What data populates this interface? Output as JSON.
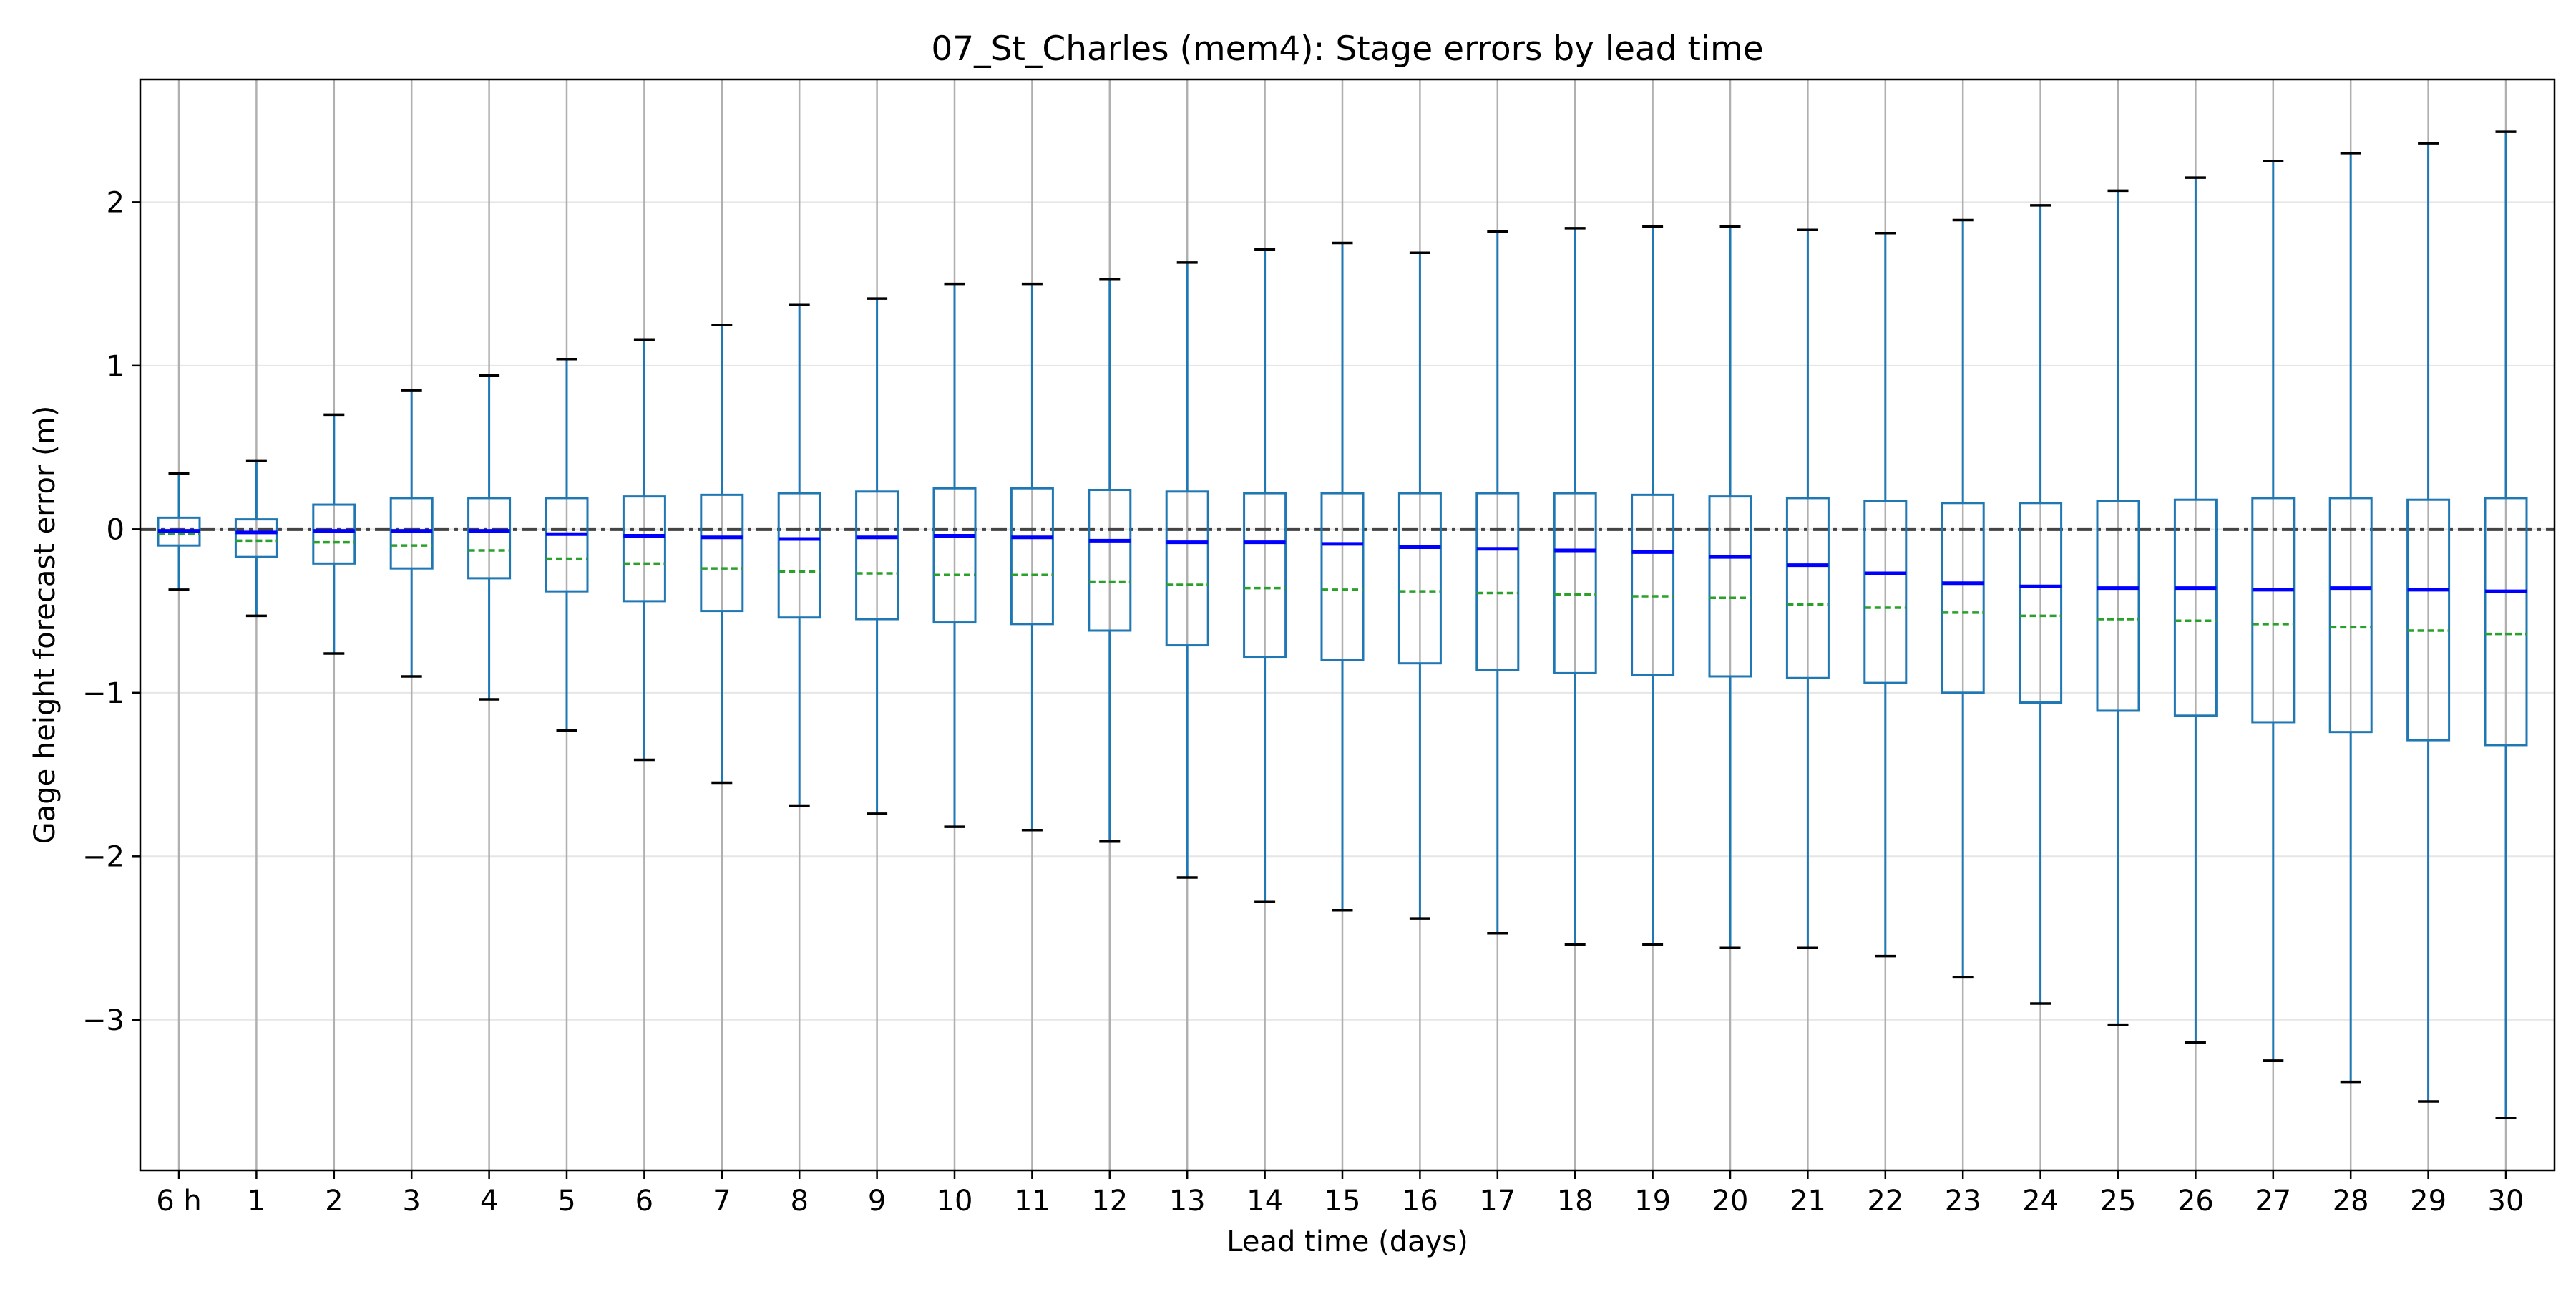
{
  "chart_data": {
    "type": "box",
    "title": "07_St_Charles (mem4): Stage errors by lead time",
    "xlabel": "Lead time (days)",
    "ylabel": "Gage height forecast error (m)",
    "ylim": [
      -3.92,
      2.75
    ],
    "yticks": [
      2,
      1,
      0,
      -1,
      -2,
      -3
    ],
    "ytick_labels": [
      "2",
      "1",
      "0",
      "−1",
      "−2",
      "−3"
    ],
    "reference_line": 0,
    "grid": "on",
    "categories": [
      "6 h",
      "1",
      "2",
      "3",
      "4",
      "5",
      "6",
      "7",
      "8",
      "9",
      "10",
      "11",
      "12",
      "13",
      "14",
      "15",
      "16",
      "17",
      "18",
      "19",
      "20",
      "21",
      "22",
      "23",
      "24",
      "25",
      "26",
      "27",
      "28",
      "29",
      "30"
    ],
    "boxes": [
      {
        "whisker_low": -0.37,
        "q1": -0.1,
        "median": -0.01,
        "mean": -0.03,
        "q3": 0.07,
        "whisker_high": 0.34
      },
      {
        "whisker_low": -0.53,
        "q1": -0.17,
        "median": -0.02,
        "mean": -0.07,
        "q3": 0.06,
        "whisker_high": 0.42
      },
      {
        "whisker_low": -0.76,
        "q1": -0.21,
        "median": -0.01,
        "mean": -0.08,
        "q3": 0.15,
        "whisker_high": 0.7
      },
      {
        "whisker_low": -0.9,
        "q1": -0.24,
        "median": -0.01,
        "mean": -0.1,
        "q3": 0.19,
        "whisker_high": 0.85
      },
      {
        "whisker_low": -1.04,
        "q1": -0.3,
        "median": -0.01,
        "mean": -0.13,
        "q3": 0.19,
        "whisker_high": 0.94
      },
      {
        "whisker_low": -1.23,
        "q1": -0.38,
        "median": -0.03,
        "mean": -0.18,
        "q3": 0.19,
        "whisker_high": 1.04
      },
      {
        "whisker_low": -1.41,
        "q1": -0.44,
        "median": -0.04,
        "mean": -0.21,
        "q3": 0.2,
        "whisker_high": 1.16
      },
      {
        "whisker_low": -1.55,
        "q1": -0.5,
        "median": -0.05,
        "mean": -0.24,
        "q3": 0.21,
        "whisker_high": 1.25
      },
      {
        "whisker_low": -1.69,
        "q1": -0.54,
        "median": -0.06,
        "mean": -0.26,
        "q3": 0.22,
        "whisker_high": 1.37
      },
      {
        "whisker_low": -1.74,
        "q1": -0.55,
        "median": -0.05,
        "mean": -0.27,
        "q3": 0.23,
        "whisker_high": 1.41
      },
      {
        "whisker_low": -1.82,
        "q1": -0.57,
        "median": -0.04,
        "mean": -0.28,
        "q3": 0.25,
        "whisker_high": 1.5
      },
      {
        "whisker_low": -1.84,
        "q1": -0.58,
        "median": -0.05,
        "mean": -0.28,
        "q3": 0.25,
        "whisker_high": 1.5
      },
      {
        "whisker_low": -1.91,
        "q1": -0.62,
        "median": -0.07,
        "mean": -0.32,
        "q3": 0.24,
        "whisker_high": 1.53
      },
      {
        "whisker_low": -2.13,
        "q1": -0.71,
        "median": -0.08,
        "mean": -0.34,
        "q3": 0.23,
        "whisker_high": 1.63
      },
      {
        "whisker_low": -2.28,
        "q1": -0.78,
        "median": -0.08,
        "mean": -0.36,
        "q3": 0.22,
        "whisker_high": 1.71
      },
      {
        "whisker_low": -2.33,
        "q1": -0.8,
        "median": -0.09,
        "mean": -0.37,
        "q3": 0.22,
        "whisker_high": 1.75
      },
      {
        "whisker_low": -2.38,
        "q1": -0.82,
        "median": -0.11,
        "mean": -0.38,
        "q3": 0.22,
        "whisker_high": 1.69
      },
      {
        "whisker_low": -2.47,
        "q1": -0.86,
        "median": -0.12,
        "mean": -0.39,
        "q3": 0.22,
        "whisker_high": 1.82
      },
      {
        "whisker_low": -2.54,
        "q1": -0.88,
        "median": -0.13,
        "mean": -0.4,
        "q3": 0.22,
        "whisker_high": 1.84
      },
      {
        "whisker_low": -2.54,
        "q1": -0.89,
        "median": -0.14,
        "mean": -0.41,
        "q3": 0.21,
        "whisker_high": 1.85
      },
      {
        "whisker_low": -2.56,
        "q1": -0.9,
        "median": -0.17,
        "mean": -0.42,
        "q3": 0.2,
        "whisker_high": 1.85
      },
      {
        "whisker_low": -2.56,
        "q1": -0.91,
        "median": -0.22,
        "mean": -0.46,
        "q3": 0.19,
        "whisker_high": 1.83
      },
      {
        "whisker_low": -2.61,
        "q1": -0.94,
        "median": -0.27,
        "mean": -0.48,
        "q3": 0.17,
        "whisker_high": 1.81
      },
      {
        "whisker_low": -2.74,
        "q1": -1.0,
        "median": -0.33,
        "mean": -0.51,
        "q3": 0.16,
        "whisker_high": 1.89
      },
      {
        "whisker_low": -2.9,
        "q1": -1.06,
        "median": -0.35,
        "mean": -0.53,
        "q3": 0.16,
        "whisker_high": 1.98
      },
      {
        "whisker_low": -3.03,
        "q1": -1.11,
        "median": -0.36,
        "mean": -0.55,
        "q3": 0.17,
        "whisker_high": 2.07
      },
      {
        "whisker_low": -3.14,
        "q1": -1.14,
        "median": -0.36,
        "mean": -0.56,
        "q3": 0.18,
        "whisker_high": 2.15
      },
      {
        "whisker_low": -3.25,
        "q1": -1.18,
        "median": -0.37,
        "mean": -0.58,
        "q3": 0.19,
        "whisker_high": 2.25
      },
      {
        "whisker_low": -3.38,
        "q1": -1.24,
        "median": -0.36,
        "mean": -0.6,
        "q3": 0.19,
        "whisker_high": 2.3
      },
      {
        "whisker_low": -3.5,
        "q1": -1.29,
        "median": -0.37,
        "mean": -0.62,
        "q3": 0.18,
        "whisker_high": 2.36
      },
      {
        "whisker_low": -3.6,
        "q1": -1.32,
        "median": -0.38,
        "mean": -0.64,
        "q3": 0.19,
        "whisker_high": 2.43
      }
    ],
    "colors": {
      "box": "#1f77b4",
      "median": "#0000ff",
      "mean": "#2ca02c",
      "cap": "#000000",
      "reference_line": "#444444",
      "vgrid": "#b0b0b0",
      "hgrid": "#e6e6e6"
    }
  }
}
